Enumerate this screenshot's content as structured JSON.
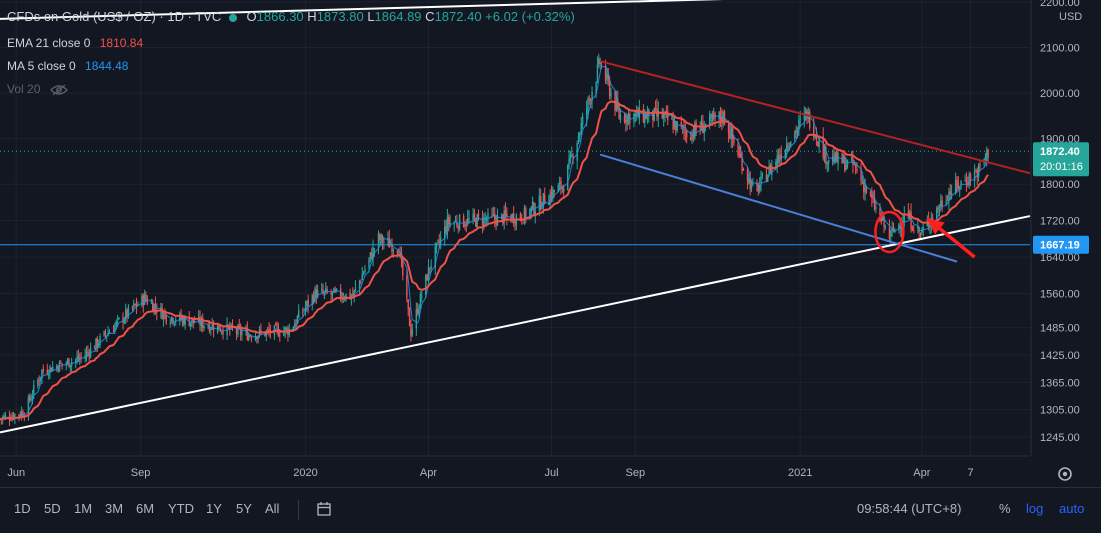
{
  "header": {
    "title": "CFDs on Gold (US$ / OZ) · 1D · TVC",
    "ohlc": [
      {
        "k": "O",
        "v": "1866.30"
      },
      {
        "k": "H",
        "v": "1873.80"
      },
      {
        "k": "L",
        "v": "1864.89"
      },
      {
        "k": "C",
        "v": "1872.40 +6.02 (+0.32%)"
      }
    ]
  },
  "indicators": {
    "ema_label": "EMA 21 close 0",
    "ema_value": "1810.84",
    "ma_label": "MA 5 close 0",
    "ma_value": "1844.48",
    "vol_label": "Vol 20"
  },
  "colors": {
    "background": "#131722",
    "up": "#26a69a",
    "down": "#ef5350",
    "ema": "#f0524a",
    "ma": "#2196f3",
    "current_price": "#26a69a",
    "hline": "#2196f3"
  },
  "chart_data": {
    "type": "candlestick",
    "symbol": "CFDs on Gold (US$ / OZ)",
    "interval": "1D",
    "currency": "USD",
    "ylim": [
      1190,
      2225
    ],
    "y_ticks": [
      "2200.00",
      "2100.00",
      "2000.00",
      "1900.00",
      "1800.00",
      "1720.00",
      "1640.00",
      "1560.00",
      "1485.00",
      "1425.00",
      "1365.00",
      "1305.00",
      "1245.00"
    ],
    "x_ticks": [
      "Jun",
      "Sep",
      "2020",
      "Apr",
      "Jul",
      "Sep",
      "2021",
      "Apr",
      "7"
    ],
    "price_path": [
      {
        "date": "2019-05-20",
        "price": 1285
      },
      {
        "date": "2019-06-07",
        "price": 1300
      },
      {
        "date": "2019-06-20",
        "price": 1390
      },
      {
        "date": "2019-07-20",
        "price": 1420
      },
      {
        "date": "2019-08-20",
        "price": 1510
      },
      {
        "date": "2019-09-04",
        "price": 1550
      },
      {
        "date": "2019-09-20",
        "price": 1510
      },
      {
        "date": "2019-10-15",
        "price": 1495
      },
      {
        "date": "2019-11-20",
        "price": 1470
      },
      {
        "date": "2019-12-20",
        "price": 1480
      },
      {
        "date": "2020-01-08",
        "price": 1560
      },
      {
        "date": "2020-02-05",
        "price": 1555
      },
      {
        "date": "2020-02-24",
        "price": 1680
      },
      {
        "date": "2020-03-10",
        "price": 1660
      },
      {
        "date": "2020-03-19",
        "price": 1475
      },
      {
        "date": "2020-04-02",
        "price": 1620
      },
      {
        "date": "2020-04-15",
        "price": 1715
      },
      {
        "date": "2020-06-10",
        "price": 1730
      },
      {
        "date": "2020-07-10",
        "price": 1800
      },
      {
        "date": "2020-08-06",
        "price": 2067
      },
      {
        "date": "2020-08-20",
        "price": 1950
      },
      {
        "date": "2020-09-20",
        "price": 1950
      },
      {
        "date": "2020-10-10",
        "price": 1910
      },
      {
        "date": "2020-11-05",
        "price": 1950
      },
      {
        "date": "2020-11-28",
        "price": 1780
      },
      {
        "date": "2020-12-20",
        "price": 1880
      },
      {
        "date": "2021-01-06",
        "price": 1955
      },
      {
        "date": "2021-01-20",
        "price": 1860
      },
      {
        "date": "2021-02-10",
        "price": 1840
      },
      {
        "date": "2021-03-08",
        "price": 1685
      },
      {
        "date": "2021-03-20",
        "price": 1735
      },
      {
        "date": "2021-03-31",
        "price": 1690
      },
      {
        "date": "2021-04-20",
        "price": 1780
      },
      {
        "date": "2021-05-13",
        "price": 1830
      },
      {
        "date": "2021-05-20",
        "price": 1872.4
      }
    ],
    "last": {
      "open": 1866.3,
      "high": 1873.8,
      "low": 1864.89,
      "close": 1872.4,
      "change": 6.02,
      "change_pct": 0.32
    },
    "labels": {
      "current_price": "1872.40",
      "countdown": "20:01:16",
      "hline_price": "1667.19"
    },
    "hline_value": 1667.19,
    "trendlines": [
      {
        "color": "white",
        "from": {
          "date": "2019-05-20",
          "price": 1255
        },
        "to": {
          "date": "2021-06-20",
          "price": 1730
        }
      },
      {
        "color": "white",
        "from": {
          "date": "2019-05-20",
          "price": 2163
        },
        "to": {
          "date": "2021-06-20",
          "price": 2225
        }
      },
      {
        "color": "darkred",
        "from": {
          "date": "2020-08-06",
          "price": 2070
        },
        "to": {
          "date": "2021-06-20",
          "price": 1824
        }
      },
      {
        "color": "blue",
        "from": {
          "date": "2020-08-06",
          "price": 1865
        },
        "to": {
          "date": "2021-04-27",
          "price": 1630
        }
      }
    ],
    "annotations": [
      {
        "type": "circle",
        "date": "2021-03-08",
        "price": 1695
      },
      {
        "type": "arrow",
        "from": {
          "date": "2021-05-10",
          "price": 1640
        },
        "to": {
          "date": "2021-04-05",
          "price": 1725
        }
      }
    ]
  },
  "bottom_bar": {
    "timeframes": [
      "1D",
      "5D",
      "1M",
      "3M",
      "6M",
      "YTD",
      "1Y",
      "5Y",
      "All"
    ],
    "clock": "09:58:44 (UTC+8)",
    "percent": "%",
    "log": "log",
    "auto": "auto"
  }
}
